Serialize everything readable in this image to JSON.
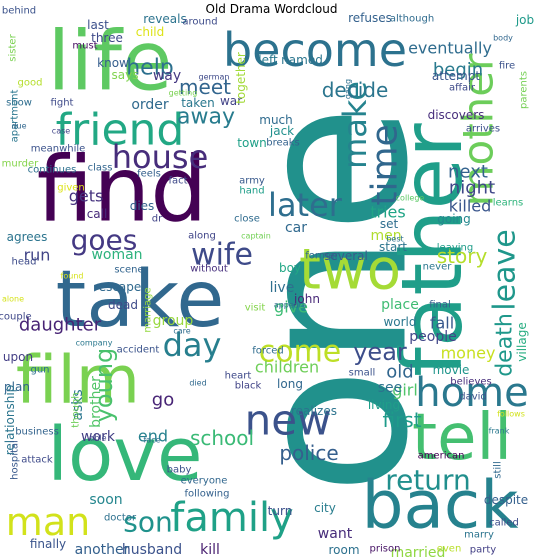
{
  "title": "Old Drama Wordcloud",
  "words": [
    {
      "t": "one",
      "c": "#21918c"
    },
    {
      "t": "find",
      "c": "#440154"
    },
    {
      "t": "life",
      "c": "#5ec962"
    },
    {
      "t": "take",
      "c": "#31688e"
    },
    {
      "t": "love",
      "c": "#35b779"
    },
    {
      "t": "father",
      "c": "#1f9e89"
    },
    {
      "t": "back",
      "c": "#26828e"
    },
    {
      "t": "film",
      "c": "#7ad151"
    },
    {
      "t": "tell",
      "c": "#44bf70"
    },
    {
      "t": "two",
      "c": "#a5db36"
    },
    {
      "t": "become",
      "c": "#2c728e"
    },
    {
      "t": "friend",
      "c": "#22a884"
    },
    {
      "t": "family",
      "c": "#1fa187"
    },
    {
      "t": "new",
      "c": "#3b528b"
    },
    {
      "t": "home",
      "c": "#2a788e"
    },
    {
      "t": "man",
      "c": "#d2e21b"
    },
    {
      "t": "mother",
      "c": "#6ccd5a"
    },
    {
      "t": "time",
      "c": "#30678d"
    },
    {
      "t": "make",
      "c": "#25838e"
    },
    {
      "t": "house",
      "c": "#472d7b"
    },
    {
      "t": "wife",
      "c": "#3e4a89"
    },
    {
      "t": "goes",
      "c": "#443983"
    },
    {
      "t": "later",
      "c": "#2e6e8e"
    },
    {
      "t": "leave",
      "c": "#1f978b"
    },
    {
      "t": "day",
      "c": "#277f8e"
    },
    {
      "t": "come",
      "c": "#bddf26"
    },
    {
      "t": "son",
      "c": "#20928c"
    },
    {
      "t": "return",
      "c": "#218f8d"
    },
    {
      "t": "year",
      "c": "#3d4e8a"
    },
    {
      "t": "young",
      "c": "#4ac16d"
    },
    {
      "t": "away",
      "c": "#287c8e"
    },
    {
      "t": "death",
      "c": "#1f988b"
    },
    {
      "t": "help",
      "c": "#2d708e"
    },
    {
      "t": "meet",
      "c": "#32658e"
    },
    {
      "t": "decide",
      "c": "#2b758e"
    },
    {
      "t": "story",
      "c": "#b5de2b"
    },
    {
      "t": "school",
      "c": "#3aba76"
    },
    {
      "t": "police",
      "c": "#355f8d"
    },
    {
      "t": "daughter",
      "c": "#482475"
    },
    {
      "t": "first",
      "c": "#1e9b8a"
    },
    {
      "t": "begin",
      "c": "#297a8e"
    },
    {
      "t": "eventually",
      "c": "#2f6c8e"
    },
    {
      "t": "killed",
      "c": "#39558c"
    },
    {
      "t": "next",
      "c": "#33628d"
    },
    {
      "t": "night",
      "c": "#3f4788"
    },
    {
      "t": "tries",
      "c": "#20a486"
    },
    {
      "t": "gets",
      "c": "#46337f"
    },
    {
      "t": "woman",
      "c": "#2db27d"
    },
    {
      "t": "money",
      "c": "#c8e020"
    },
    {
      "t": "old",
      "c": "#31668e"
    },
    {
      "t": "girl",
      "c": "#4fc46a"
    },
    {
      "t": "village",
      "c": "#26ad81"
    },
    {
      "t": "fall",
      "c": "#38588c"
    },
    {
      "t": "live",
      "c": "#2e6f8e"
    },
    {
      "t": "give",
      "c": "#3dbc74"
    },
    {
      "t": "children",
      "c": "#6ece58"
    },
    {
      "t": "go",
      "c": "#482576"
    },
    {
      "t": "see",
      "c": "#2c718e"
    },
    {
      "t": "run",
      "c": "#414487"
    },
    {
      "t": "end",
      "c": "#26818e"
    },
    {
      "t": "work",
      "c": "#423f85"
    },
    {
      "t": "group",
      "c": "#98d83e"
    },
    {
      "t": "brother",
      "c": "#52c569"
    },
    {
      "t": "asks",
      "c": "#2a768e"
    },
    {
      "t": "husband",
      "c": "#3b528b"
    },
    {
      "t": "kill",
      "c": "#481f70"
    },
    {
      "t": "soon",
      "c": "#24868e"
    },
    {
      "t": "another",
      "c": "#34608d"
    },
    {
      "t": "finally",
      "c": "#3a548c"
    },
    {
      "t": "city",
      "c": "#287d8e"
    },
    {
      "t": "want",
      "c": "#472c7a"
    },
    {
      "t": "room",
      "c": "#2d718e"
    },
    {
      "t": "married",
      "c": "#90d743"
    },
    {
      "t": "prison",
      "c": "#471365"
    },
    {
      "t": "party",
      "c": "#423f85"
    },
    {
      "t": "even",
      "c": "#b8de29"
    },
    {
      "t": "people",
      "c": "#404688"
    },
    {
      "t": "movie",
      "c": "#1f958b"
    },
    {
      "t": "place",
      "c": "#3fbc73"
    },
    {
      "t": "world",
      "c": "#2a778e"
    },
    {
      "t": "john",
      "c": "#482878"
    },
    {
      "t": "boy",
      "c": "#22a785"
    },
    {
      "t": "car",
      "c": "#30698e"
    },
    {
      "t": "men",
      "c": "#b0dd2f"
    },
    {
      "t": "start",
      "c": "#2b748e"
    },
    {
      "t": "set",
      "c": "#2e6d8e"
    },
    {
      "t": "call",
      "c": "#472a7a"
    },
    {
      "t": "dies",
      "c": "#33638d"
    },
    {
      "t": "town",
      "c": "#1fa088"
    },
    {
      "t": "war",
      "c": "#414287"
    },
    {
      "t": "taken",
      "c": "#2a788e"
    },
    {
      "t": "order",
      "c": "#306a8e"
    },
    {
      "t": "way",
      "c": "#453882"
    },
    {
      "t": "know",
      "c": "#355e8d"
    },
    {
      "t": "says",
      "c": "#7fd34e"
    },
    {
      "t": "three",
      "c": "#3e4989"
    },
    {
      "t": "child",
      "c": "#dde318"
    },
    {
      "t": "last",
      "c": "#3c508b"
    },
    {
      "t": "must",
      "c": "#471063"
    },
    {
      "t": "reveals",
      "c": "#2c738e"
    },
    {
      "t": "around",
      "c": "#3e4c8a"
    },
    {
      "t": "refuses",
      "c": "#34618d"
    },
    {
      "t": "although",
      "c": "#2f6b8e"
    },
    {
      "t": "job",
      "c": "#1f9a8a"
    },
    {
      "t": "together",
      "c": "#a2da37"
    },
    {
      "t": "left",
      "c": "#29798e"
    },
    {
      "t": "named",
      "c": "#2b758e"
    },
    {
      "t": "attempt",
      "c": "#39568c"
    },
    {
      "t": "affair",
      "c": "#3e4a89"
    },
    {
      "t": "parents",
      "c": "#75d054"
    },
    {
      "t": "much",
      "c": "#2f6b8e"
    },
    {
      "t": "jack",
      "c": "#21908d"
    },
    {
      "t": "breaks",
      "c": "#33628d"
    },
    {
      "t": "discovers",
      "c": "#472e7c"
    },
    {
      "t": "arrives",
      "c": "#3c4f8a"
    },
    {
      "t": "college",
      "c": "#5ac864"
    },
    {
      "t": "learns",
      "c": "#2fb47c"
    },
    {
      "t": "army",
      "c": "#38598c"
    },
    {
      "t": "hand",
      "c": "#1f9e89"
    },
    {
      "t": "former",
      "c": "#31678e"
    },
    {
      "t": "several",
      "c": "#375a8c"
    },
    {
      "t": "going",
      "c": "#23888e"
    },
    {
      "t": "leaving",
      "c": "#1e9c89"
    },
    {
      "t": "best",
      "c": "#2d708e"
    },
    {
      "t": "captain",
      "c": "#73d056"
    },
    {
      "t": "along",
      "c": "#404588"
    },
    {
      "t": "agrees",
      "c": "#2b748e"
    },
    {
      "t": "head",
      "c": "#3e4c8a"
    },
    {
      "t": "scene",
      "c": "#32648e"
    },
    {
      "t": "without",
      "c": "#472f7d"
    },
    {
      "t": "escape",
      "c": "#30698e"
    },
    {
      "t": "dead",
      "c": "#3e4a89"
    },
    {
      "t": "marriage",
      "c": "#95d840"
    },
    {
      "t": "visit",
      "c": "#84d44b"
    },
    {
      "t": "never",
      "c": "#2a768e"
    },
    {
      "t": "appears",
      "c": "#2e6f8e"
    },
    {
      "t": "final",
      "c": "#34608d"
    },
    {
      "t": "alone",
      "c": "#d5e21a"
    },
    {
      "t": "couple",
      "c": "#3f4889"
    },
    {
      "t": "upon",
      "c": "#433e85"
    },
    {
      "t": "company",
      "c": "#2a788e"
    },
    {
      "t": "accident",
      "c": "#3a538b"
    },
    {
      "t": "forced",
      "c": "#2f6c8e"
    },
    {
      "t": "care",
      "c": "#2e6d8e"
    },
    {
      "t": "long",
      "c": "#31678e"
    },
    {
      "t": "small",
      "c": "#3b528b"
    },
    {
      "t": "heart",
      "c": "#3e4989"
    },
    {
      "t": "black",
      "c": "#414487"
    },
    {
      "t": "plan",
      "c": "#32658e"
    },
    {
      "t": "gun",
      "c": "#2d708e"
    },
    {
      "t": "died",
      "c": "#30698e"
    },
    {
      "t": "believes",
      "c": "#472d7b"
    },
    {
      "t": "realizes",
      "c": "#2c738e"
    },
    {
      "t": "living",
      "c": "#1f9e89"
    },
    {
      "t": "david",
      "c": "#3b528b"
    },
    {
      "t": "relationship",
      "c": "#2b758e"
    },
    {
      "t": "business",
      "c": "#33638d"
    },
    {
      "t": "hospital",
      "c": "#38588c"
    },
    {
      "t": "attack",
      "c": "#3e4a89"
    },
    {
      "t": "though",
      "c": "#6ece58"
    },
    {
      "t": "able",
      "c": "#404688"
    },
    {
      "t": "face",
      "c": "#2e6f8e"
    },
    {
      "t": "baby",
      "c": "#3b528b"
    },
    {
      "t": "everyone",
      "c": "#31678e"
    },
    {
      "t": "following",
      "c": "#34618d"
    },
    {
      "t": "doctor",
      "c": "#2d708e"
    },
    {
      "t": "turn",
      "c": "#3c508b"
    },
    {
      "t": "american",
      "c": "#440154"
    },
    {
      "t": "frank",
      "c": "#2a788e"
    },
    {
      "t": "still",
      "c": "#30698e"
    },
    {
      "t": "follows",
      "c": "#d2e21b"
    },
    {
      "t": "despite",
      "c": "#34608d"
    },
    {
      "t": "called",
      "c": "#3e4c8a"
    },
    {
      "t": "marry",
      "c": "#2b748e"
    },
    {
      "t": "behind",
      "c": "#3b528b"
    },
    {
      "t": "sister",
      "c": "#7ad151"
    },
    {
      "t": "good",
      "c": "#b5de2b"
    },
    {
      "t": "show",
      "c": "#2e6d8e"
    },
    {
      "t": "fight",
      "c": "#3e4a89"
    },
    {
      "t": "apartment",
      "c": "#2a768e"
    },
    {
      "t": "due",
      "c": "#31678e"
    },
    {
      "t": "case",
      "c": "#404588"
    },
    {
      "t": "meanwhile",
      "c": "#3b528b"
    },
    {
      "t": "continues",
      "c": "#2d708e"
    },
    {
      "t": "murder",
      "c": "#84d44b"
    },
    {
      "t": "class",
      "c": "#32658e"
    },
    {
      "t": "feels",
      "c": "#34608d"
    },
    {
      "t": "fact",
      "c": "#3e4989"
    },
    {
      "t": "given",
      "c": "#dde318"
    },
    {
      "t": "dr",
      "c": "#414487"
    },
    {
      "t": "close",
      "c": "#2f6b8e"
    },
    {
      "t": "found",
      "c": "#d5e21a"
    },
    {
      "t": "getting",
      "c": "#7ad151"
    },
    {
      "t": "german",
      "c": "#3e4a89"
    },
    {
      "t": "gang",
      "c": "#2d708e"
    },
    {
      "t": "fire",
      "c": "#3b528b"
    },
    {
      "t": "body",
      "c": "#31678e"
    }
  ]
}
